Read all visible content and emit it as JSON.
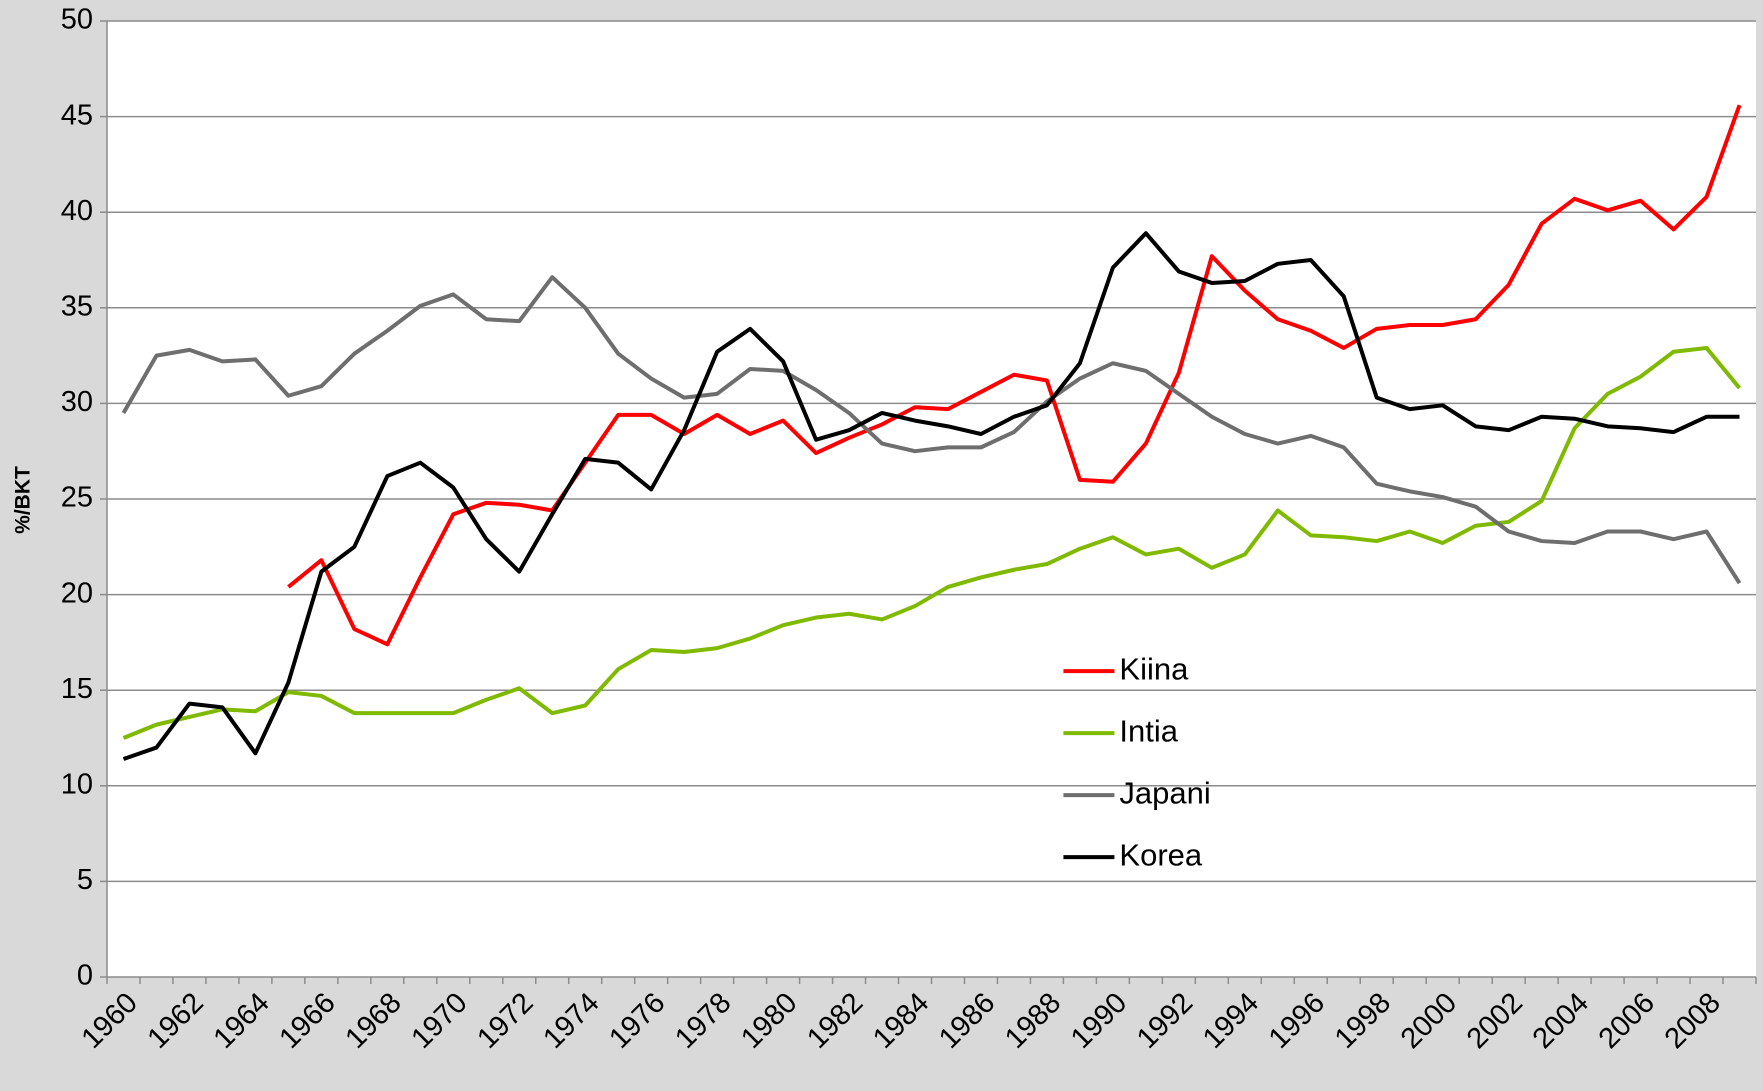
{
  "chart_data": {
    "type": "line",
    "y_label": "%/BKT",
    "categories": [
      "1960",
      null,
      "1962",
      null,
      "1964",
      null,
      "1966",
      null,
      "1968",
      null,
      "1970",
      null,
      "1972",
      null,
      "1974",
      null,
      "1976",
      null,
      "1978",
      null,
      "1980",
      null,
      "1982",
      null,
      "1984",
      null,
      "1986",
      null,
      "1988",
      null,
      "1990",
      null,
      "1992",
      null,
      "1994",
      null,
      "1996",
      null,
      "1998",
      null,
      "2000",
      null,
      "2002",
      null,
      "2004",
      null,
      "2006",
      null,
      "2008",
      null
    ],
    "series": [
      {
        "name": "Kiina",
        "color": "#ff0000",
        "values": [
          null,
          null,
          null,
          null,
          null,
          20.4,
          21.8,
          18.2,
          17.4,
          20.9,
          24.2,
          24.8,
          24.7,
          24.4,
          26.9,
          29.4,
          29.4,
          28.4,
          29.4,
          28.4,
          29.1,
          27.4,
          28.2,
          28.9,
          29.8,
          29.7,
          30.6,
          31.5,
          31.2,
          26.0,
          25.9,
          27.9,
          31.6,
          37.7,
          35.9,
          34.4,
          33.8,
          32.9,
          33.9,
          34.1,
          34.1,
          34.4,
          36.2,
          39.4,
          40.7,
          40.1,
          40.6,
          39.1,
          40.8,
          45.6
        ]
      },
      {
        "name": "Intia",
        "color": "#7fba00",
        "values": [
          12.5,
          13.2,
          13.6,
          14.0,
          13.9,
          14.9,
          14.7,
          13.8,
          13.8,
          13.8,
          13.8,
          14.5,
          15.1,
          13.8,
          14.2,
          16.1,
          17.1,
          17.0,
          17.2,
          17.7,
          18.4,
          18.8,
          19.0,
          18.7,
          19.4,
          20.4,
          20.9,
          21.3,
          21.6,
          22.4,
          23.0,
          22.1,
          22.4,
          21.4,
          22.1,
          24.4,
          23.1,
          23.0,
          22.8,
          23.3,
          22.7,
          23.6,
          23.8,
          24.9,
          28.7,
          30.5,
          31.4,
          32.7,
          32.9,
          30.8
        ]
      },
      {
        "name": "Japani",
        "color": "#6e6e6e",
        "values": [
          29.5,
          32.5,
          32.8,
          32.2,
          32.3,
          30.4,
          30.9,
          32.6,
          33.8,
          35.1,
          35.7,
          34.4,
          34.3,
          36.6,
          35.0,
          32.6,
          31.3,
          30.3,
          30.5,
          31.8,
          31.7,
          30.7,
          29.5,
          27.9,
          27.5,
          27.7,
          27.7,
          28.5,
          30.1,
          31.3,
          32.1,
          31.7,
          30.5,
          29.3,
          28.4,
          27.9,
          28.3,
          27.7,
          25.8,
          25.4,
          25.1,
          24.6,
          23.3,
          22.8,
          22.7,
          23.3,
          23.3,
          22.9,
          23.3,
          20.6
        ]
      },
      {
        "name": "Korea",
        "color": "#000000",
        "values": [
          11.4,
          12.0,
          14.3,
          14.1,
          11.7,
          15.4,
          21.2,
          22.5,
          26.2,
          26.9,
          25.6,
          22.9,
          21.2,
          24.2,
          27.1,
          26.9,
          25.5,
          28.6,
          32.7,
          33.9,
          32.2,
          28.1,
          28.6,
          29.5,
          29.1,
          28.8,
          28.4,
          29.3,
          29.9,
          32.1,
          37.1,
          38.9,
          36.9,
          36.3,
          36.4,
          37.3,
          37.5,
          35.6,
          30.3,
          29.7,
          29.9,
          28.8,
          28.6,
          29.3,
          29.2,
          28.8,
          28.7,
          28.5,
          29.3,
          29.3
        ]
      }
    ],
    "ylim": [
      0,
      50
    ],
    "yticks": [
      0,
      5,
      10,
      15,
      20,
      25,
      30,
      35,
      40,
      45,
      50
    ],
    "grid": true,
    "legend": "center"
  }
}
